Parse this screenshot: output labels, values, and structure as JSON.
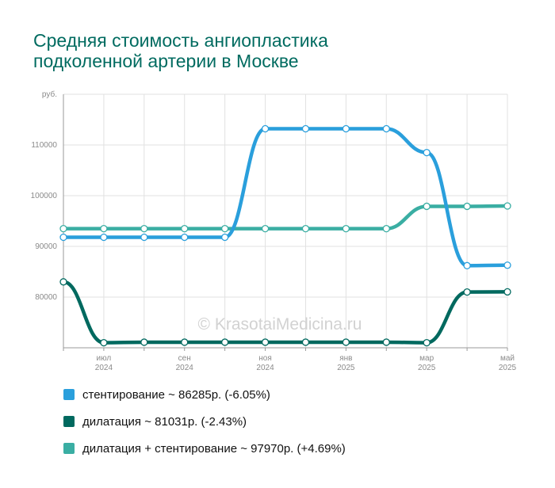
{
  "title_lines": [
    "Средняя стоимость ангиопластика",
    "подколенной артерии в Москве"
  ],
  "watermark": "© KrasotaiMedicina.ru",
  "chart_data": {
    "type": "line",
    "y_unit": "руб.",
    "ylim": [
      70000,
      120000
    ],
    "y_ticks": [
      {
        "value": 80000,
        "label": "80000"
      },
      {
        "value": 90000,
        "label": "90000"
      },
      {
        "value": 100000,
        "label": "100000"
      },
      {
        "value": 110000,
        "label": "110000"
      }
    ],
    "x_count": 12,
    "x_tick_labels": [
      {
        "index": 1,
        "month": "июл",
        "year": "2024"
      },
      {
        "index": 3,
        "month": "сен",
        "year": "2024"
      },
      {
        "index": 5,
        "month": "ноя",
        "year": "2024"
      },
      {
        "index": 7,
        "month": "янв",
        "year": "2025"
      },
      {
        "index": 9,
        "month": "мар",
        "year": "2025"
      },
      {
        "index": 11,
        "month": "май",
        "year": "2025"
      }
    ],
    "grid": true,
    "series": [
      {
        "name": "дилатация + стентирование",
        "color": "#3aaea3",
        "values": [
          93500,
          93500,
          93500,
          93500,
          93500,
          93500,
          93500,
          93500,
          93500,
          97900,
          97900,
          97970
        ]
      },
      {
        "name": "стентирование",
        "color": "#2a9fdc",
        "values": [
          91800,
          91800,
          91800,
          91800,
          91800,
          113200,
          113200,
          113200,
          113200,
          108500,
          86200,
          86285
        ]
      },
      {
        "name": "дилатация",
        "color": "#00695f",
        "values": [
          83000,
          71000,
          71100,
          71100,
          71100,
          71100,
          71100,
          71100,
          71100,
          71000,
          81000,
          81031
        ]
      }
    ]
  },
  "legend": [
    {
      "label": "стентирование ~ 86285р. (-6.05%)",
      "color": "#2a9fdc"
    },
    {
      "label": "дилатация ~ 81031р. (-2.43%)",
      "color": "#00695f"
    },
    {
      "label": "дилатация + стентирование ~ 97970р. (+4.69%)",
      "color": "#3aaea3"
    }
  ]
}
